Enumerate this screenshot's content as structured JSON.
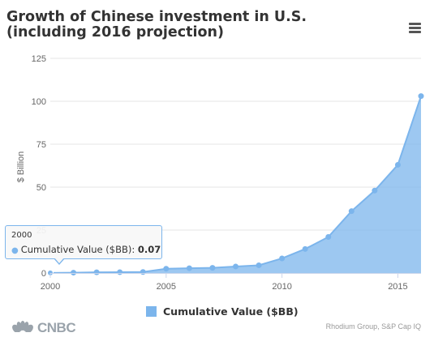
{
  "chart_data": {
    "type": "area",
    "title": "Growth of Chinese investment in U.S. (including 2016 projection)",
    "ylabel": "$ Billion",
    "xlabel": "",
    "ylim": [
      0,
      125
    ],
    "xlim": [
      2000,
      2016
    ],
    "y_ticks": [
      0,
      25,
      50,
      75,
      100,
      125
    ],
    "x_ticks": [
      2000,
      2005,
      2010,
      2015
    ],
    "grid": "horizontal",
    "legend_position": "bottom",
    "series": [
      {
        "name": "Cumulative Value ($BB)",
        "color": "#7cb5ec",
        "x": [
          2000,
          2001,
          2002,
          2003,
          2004,
          2005,
          2006,
          2007,
          2008,
          2009,
          2010,
          2011,
          2012,
          2013,
          2014,
          2015,
          2016
        ],
        "values": [
          0.07,
          0.2,
          0.4,
          0.5,
          0.6,
          2.5,
          2.8,
          3.0,
          3.8,
          4.5,
          8.5,
          14,
          21,
          36,
          48,
          63,
          103
        ]
      }
    ]
  },
  "header": {
    "menu_icon": "hamburger-menu-icon"
  },
  "tooltip": {
    "header": "2000",
    "series_label": "Cumulative Value ($BB): ",
    "value": "0.07"
  },
  "footer": {
    "logo_text": "CNBC",
    "source": "Rhodium Group, S&P Cap IQ"
  }
}
